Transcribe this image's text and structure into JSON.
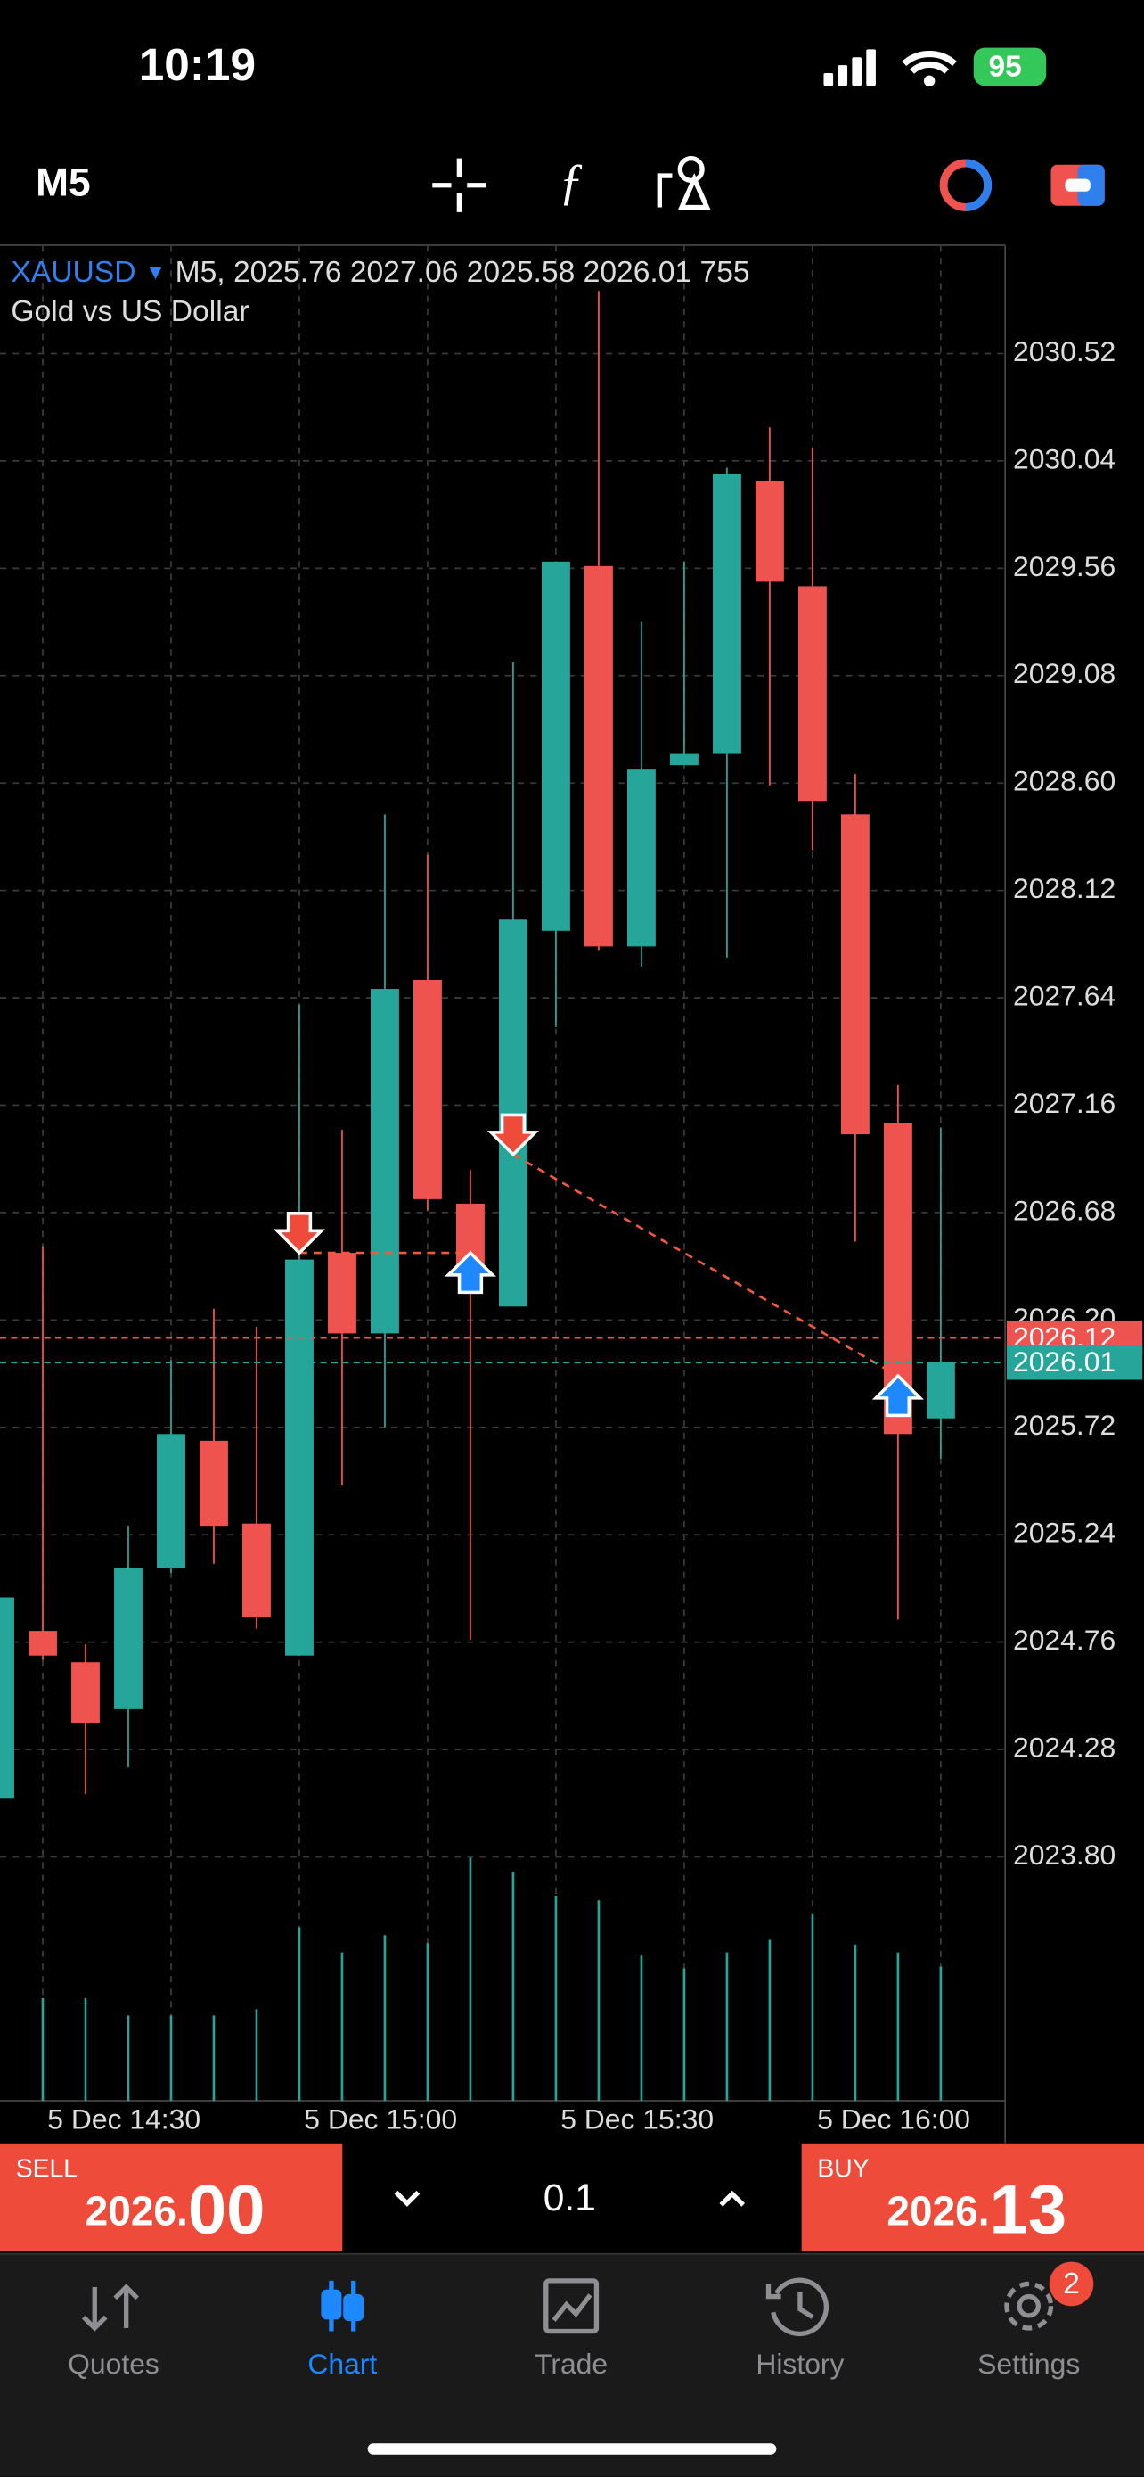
{
  "status_bar": {
    "time": "10:19",
    "battery": "95"
  },
  "toolbar": {
    "timeframe": "M5"
  },
  "chart_data": {
    "type": "candlestick",
    "symbol": "XAUUSD",
    "info_line": "M5, 2025.76 2027.06 2025.58 2026.01 755",
    "description": "Gold vs US Dollar",
    "categories": [
      null,
      "5 Dec 14:30",
      null,
      null,
      null,
      null,
      null,
      "5 Dec 15:00",
      null,
      null,
      null,
      null,
      null,
      "5 Dec 15:30",
      null,
      null,
      null,
      null,
      null,
      "5 Dec 16:00",
      null,
      null,
      null
    ],
    "open": [
      2024.06,
      2024.81,
      2024.67,
      2024.46,
      2025.09,
      2025.66,
      2025.29,
      2024.7,
      2026.5,
      2026.14,
      2027.72,
      2026.72,
      2026.26,
      2027.94,
      2029.57,
      2027.87,
      2028.68,
      2028.73,
      2029.95,
      2029.48,
      2028.46,
      2027.08,
      2025.76
    ],
    "high": [
      2024.96,
      2026.53,
      2024.75,
      2025.28,
      2026.02,
      2026.25,
      2026.17,
      2027.61,
      2027.05,
      2028.46,
      2028.28,
      2026.87,
      2029.14,
      2029.59,
      2030.8,
      2029.32,
      2029.59,
      2030.01,
      2030.19,
      2030.1,
      2028.64,
      2027.25,
      2027.06
    ],
    "low": [
      2024.06,
      2024.68,
      2024.08,
      2024.2,
      2025.07,
      2025.11,
      2024.82,
      2024.7,
      2025.46,
      2025.72,
      2026.69,
      2024.77,
      2026.26,
      2027.51,
      2027.85,
      2027.78,
      2028.68,
      2027.82,
      2028.59,
      2028.3,
      2026.55,
      2024.86,
      2025.58
    ],
    "close": [
      2024.96,
      2024.7,
      2024.4,
      2025.09,
      2025.69,
      2025.28,
      2024.87,
      2026.47,
      2026.14,
      2027.68,
      2026.74,
      2026.45,
      2027.99,
      2029.59,
      2027.87,
      2028.66,
      2028.73,
      2029.98,
      2029.5,
      2028.52,
      2027.03,
      2025.69,
      2026.01
    ],
    "volume": [
      null,
      577,
      577,
      480,
      480,
      480,
      515,
      977,
      835,
      932,
      888,
      1368,
      1288,
      1154,
      1128,
      817,
      746,
      835,
      906,
      1048,
      879,
      835,
      755
    ],
    "up_color": "#26a69a",
    "down_color": "#ef5350",
    "volume_color": "#26a69a",
    "ylim": [
      2022.71,
      2030.99
    ],
    "yticks": [
      2030.52,
      2030.04,
      2029.56,
      2029.08,
      {
        "value": 2028.6,
        "label": "2028.60"
      },
      2028.12,
      2027.64,
      2027.16,
      2026.68,
      {
        "value": 2026.2,
        "label": "2026.20"
      },
      2025.72,
      2025.24,
      2024.76,
      2024.28,
      {
        "value": 2023.8,
        "label": "2023.80"
      }
    ],
    "volume_lim": [
      0,
      2000
    ],
    "grid": true,
    "price_lines": [
      {
        "value": 2026.12,
        "color": "#ef5350"
      },
      {
        "value": 2026.01,
        "color": "#26a69a"
      }
    ],
    "trades": [
      {
        "direction": "sell",
        "open_index": 7,
        "open_price": 2026.5,
        "close_index": 11,
        "close_price": 2026.5
      },
      {
        "direction": "sell",
        "open_index": 12,
        "open_price": 2026.94,
        "close_index": 21,
        "close_price": 2025.95
      }
    ]
  },
  "trade_panel": {
    "sell": {
      "label": "SELL",
      "price_prefix": "2026.",
      "price_suffix": "00"
    },
    "lot": "0.1",
    "buy": {
      "label": "BUY",
      "price_prefix": "2026.",
      "price_suffix": "13"
    }
  },
  "tabs": [
    {
      "label": "Quotes"
    },
    {
      "label": "Chart",
      "active": true
    },
    {
      "label": "Trade"
    },
    {
      "label": "History"
    },
    {
      "label": "Settings",
      "badge": 2
    }
  ]
}
